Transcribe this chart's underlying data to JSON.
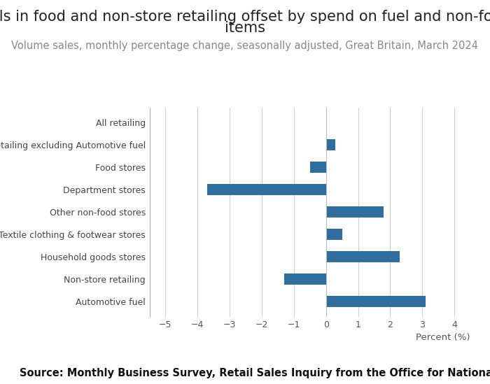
{
  "title_line1": "Falls in food and non-store retailing offset by spend on fuel and non-food",
  "title_line2": "items",
  "subtitle": "Volume sales, monthly percentage change, seasonally adjusted, Great Britain, March 2024",
  "source": "Source: Monthly Business Survey, Retail Sales Inquiry from the Office for National Statistics",
  "categories": [
    "Automotive fuel",
    "Non-store retailing",
    "Household goods stores",
    "Textile clothing & footwear stores",
    "Other non-food stores",
    "Department stores",
    "Food stores",
    "All retailing excluding Automotive fuel",
    "All retailing"
  ],
  "values": [
    3.1,
    -1.3,
    2.3,
    0.5,
    1.8,
    -3.7,
    -0.5,
    0.3,
    0.0
  ],
  "bar_color": "#2e6d9e",
  "xlim": [
    -5.5,
    4.5
  ],
  "xticks": [
    -5,
    -4,
    -3,
    -2,
    -1,
    0,
    1,
    2,
    3,
    4
  ],
  "xlabel": "Percent (%)",
  "background_color": "#ffffff",
  "title_fontsize": 15,
  "subtitle_fontsize": 10.5,
  "source_fontsize": 10.5
}
